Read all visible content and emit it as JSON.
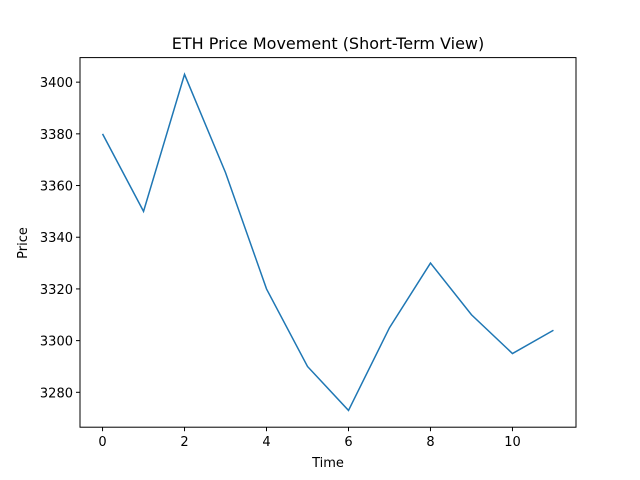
{
  "chart_data": {
    "type": "line",
    "title": "ETH Price Movement (Short-Term View)",
    "x_label": "Time",
    "y_label": "Price",
    "x": [
      0,
      1,
      2,
      3,
      4,
      5,
      6,
      7,
      8,
      9,
      10,
      11
    ],
    "series": [
      {
        "name": "ETH",
        "color": "#1f77b4",
        "values": [
          3380,
          3350,
          3403,
          3365,
          3320,
          3290,
          3273,
          3305,
          3330,
          3310,
          3295,
          3304
        ]
      }
    ],
    "xlim": [
      -0.55,
      11.55
    ],
    "xticks": [
      0,
      2,
      4,
      6,
      8,
      10
    ],
    "ylim": [
      3266.5,
      3409.5
    ],
    "yticks": [
      3280,
      3300,
      3320,
      3340,
      3360,
      3380,
      3400
    ]
  }
}
